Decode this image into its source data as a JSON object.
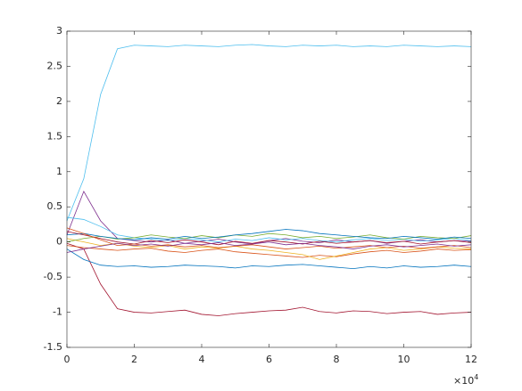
{
  "chart_data": {
    "type": "line",
    "x": [
      0,
      0.5,
      1,
      1.5,
      2,
      2.5,
      3,
      3.5,
      4,
      4.5,
      5,
      5.5,
      6,
      6.5,
      7,
      7.5,
      8,
      8.5,
      9,
      9.5,
      10,
      10.5,
      11,
      11.5,
      12
    ],
    "x_multiplier": {
      "base": "×10",
      "exponent": "4"
    },
    "xlim": [
      0,
      12
    ],
    "xticks": [
      0,
      2,
      4,
      6,
      8,
      10,
      12
    ],
    "ylim": [
      -1.5,
      3
    ],
    "yticks": [
      -1.5,
      -1,
      -0.5,
      0,
      0.5,
      1,
      1.5,
      2,
      2.5,
      3
    ],
    "series": [
      {
        "color": "#4DBEEE",
        "values": [
          0.3,
          0.9,
          2.1,
          2.75,
          2.8,
          2.79,
          2.78,
          2.8,
          2.79,
          2.78,
          2.8,
          2.81,
          2.79,
          2.78,
          2.8,
          2.79,
          2.8,
          2.78,
          2.79,
          2.78,
          2.8,
          2.79,
          2.78,
          2.79,
          2.78
        ]
      },
      {
        "color": "#A2142F",
        "values": [
          -0.02,
          -0.1,
          -0.6,
          -0.95,
          -1.0,
          -1.01,
          -0.99,
          -0.97,
          -1.03,
          -1.05,
          -1.02,
          -1.0,
          -0.98,
          -0.97,
          -0.93,
          -0.99,
          -1.01,
          -0.98,
          -0.99,
          -1.02,
          -1.0,
          -0.99,
          -1.03,
          -1.01,
          -1.0
        ]
      },
      {
        "color": "#0072BD",
        "values": [
          -0.1,
          -0.25,
          -0.33,
          -0.35,
          -0.34,
          -0.36,
          -0.35,
          -0.33,
          -0.34,
          -0.35,
          -0.37,
          -0.34,
          -0.35,
          -0.33,
          -0.32,
          -0.34,
          -0.36,
          -0.38,
          -0.35,
          -0.37,
          -0.34,
          -0.36,
          -0.35,
          -0.33,
          -0.35
        ]
      },
      {
        "color": "#7E2F8E",
        "values": [
          0.1,
          0.72,
          0.3,
          0.05,
          0.02,
          0.0,
          0.03,
          -0.02,
          0.01,
          0.04,
          0.0,
          -0.03,
          0.02,
          0.05,
          0.01,
          -0.01,
          0.03,
          0.0,
          0.02,
          -0.02,
          0.01,
          0.03,
          0.0,
          0.02,
          0.01
        ]
      },
      {
        "color": "#4DBEEE",
        "values": [
          0.35,
          0.32,
          0.22,
          0.1,
          0.06,
          0.04,
          0.02,
          0.05,
          0.03,
          0.0,
          0.04,
          0.02,
          0.06,
          0.03,
          0.05,
          0.02,
          0.0,
          0.03,
          0.05,
          0.02,
          0.04,
          0.01,
          0.03,
          0.05,
          0.02
        ]
      },
      {
        "color": "#D95319",
        "values": [
          -0.05,
          -0.08,
          -0.1,
          -0.12,
          -0.1,
          -0.09,
          -0.13,
          -0.15,
          -0.12,
          -0.1,
          -0.14,
          -0.16,
          -0.18,
          -0.2,
          -0.22,
          -0.19,
          -0.21,
          -0.17,
          -0.14,
          -0.12,
          -0.15,
          -0.13,
          -0.1,
          -0.12,
          -0.11
        ]
      },
      {
        "color": "#EDB120",
        "values": [
          0.05,
          0.0,
          -0.05,
          -0.02,
          -0.06,
          -0.08,
          -0.05,
          -0.1,
          -0.07,
          -0.09,
          -0.06,
          -0.1,
          -0.12,
          -0.15,
          -0.18,
          -0.25,
          -0.2,
          -0.15,
          -0.1,
          -0.08,
          -0.12,
          -0.1,
          -0.07,
          -0.09,
          -0.1
        ]
      },
      {
        "color": "#77AC30",
        "values": [
          0.0,
          0.05,
          0.08,
          0.04,
          0.06,
          0.1,
          0.07,
          0.05,
          0.09,
          0.06,
          0.1,
          0.08,
          0.12,
          0.1,
          0.06,
          0.08,
          0.05,
          0.07,
          0.1,
          0.06,
          0.04,
          0.08,
          0.06,
          0.05,
          0.09
        ]
      },
      {
        "color": "#0072BD",
        "values": [
          0.1,
          0.12,
          0.08,
          0.05,
          0.03,
          0.06,
          0.04,
          0.08,
          0.05,
          0.07,
          0.1,
          0.12,
          0.15,
          0.18,
          0.16,
          0.12,
          0.1,
          0.08,
          0.06,
          0.05,
          0.08,
          0.06,
          0.04,
          0.07,
          0.05
        ]
      },
      {
        "color": "#A2142F",
        "values": [
          0.15,
          0.1,
          0.05,
          0.0,
          -0.03,
          0.02,
          -0.01,
          0.03,
          0.0,
          -0.04,
          0.01,
          -0.02,
          0.02,
          0.0,
          -0.03,
          0.01,
          -0.02,
          0.0,
          0.02,
          -0.01,
          0.01,
          -0.03,
          0.0,
          0.02,
          -0.01
        ]
      },
      {
        "color": "#D95319",
        "values": [
          0.2,
          0.12,
          0.03,
          -0.05,
          -0.03,
          -0.06,
          -0.04,
          -0.07,
          -0.05,
          -0.08,
          -0.06,
          -0.04,
          -0.07,
          -0.1,
          -0.08,
          -0.06,
          -0.09,
          -0.07,
          -0.05,
          -0.08,
          -0.06,
          -0.09,
          -0.07,
          -0.05,
          -0.08
        ]
      },
      {
        "color": "#7E2F8E",
        "values": [
          -0.15,
          -0.1,
          -0.06,
          -0.02,
          -0.05,
          -0.03,
          -0.06,
          -0.02,
          -0.04,
          -0.01,
          -0.05,
          -0.03,
          0.0,
          -0.04,
          -0.02,
          -0.05,
          -0.07,
          -0.1,
          -0.06,
          -0.04,
          -0.07,
          -0.05,
          -0.03,
          -0.06,
          -0.04
        ]
      }
    ]
  }
}
